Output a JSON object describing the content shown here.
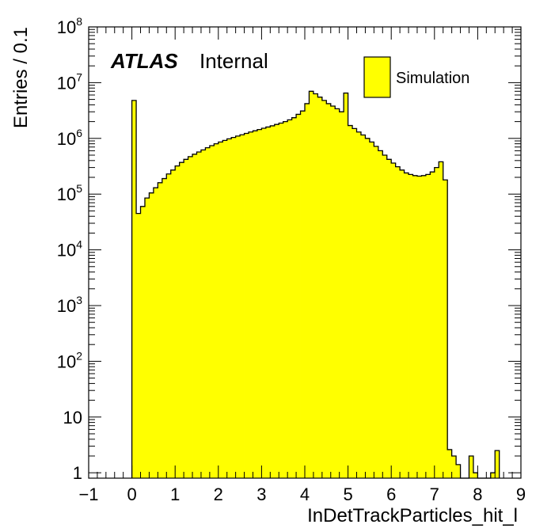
{
  "chart_data": {
    "type": "bar",
    "style": "histogram-step-filled",
    "xlabel": "InDetTrackParticles_hit_l",
    "ylabel": "Entries / 0.1",
    "xlim": [
      -1,
      9
    ],
    "ylim": [
      0.8,
      100000000
    ],
    "yscale": "log",
    "bin_width": 0.1,
    "fill_color": "#ffff00",
    "line_color": "#000000",
    "experiment_label": "ATLAS",
    "experiment_sublabel": "Internal",
    "legend": {
      "position": "top-right",
      "entries": [
        "Simulation"
      ]
    },
    "x_ticks": [
      "−1",
      "0",
      "1",
      "2",
      "3",
      "4",
      "5",
      "6",
      "7",
      "8",
      "9"
    ],
    "y_ticks": [
      {
        "base": "1",
        "exp": ""
      },
      {
        "base": "10",
        "exp": ""
      },
      {
        "base": "10",
        "exp": "2"
      },
      {
        "base": "10",
        "exp": "3"
      },
      {
        "base": "10",
        "exp": "4"
      },
      {
        "base": "10",
        "exp": "5"
      },
      {
        "base": "10",
        "exp": "6"
      },
      {
        "base": "10",
        "exp": "7"
      },
      {
        "base": "10",
        "exp": "8"
      }
    ],
    "bin_start": 0.0,
    "values": [
      4800000,
      45000,
      60000,
      85000,
      105000,
      130000,
      160000,
      190000,
      230000,
      270000,
      320000,
      370000,
      420000,
      470000,
      520000,
      570000,
      620000,
      680000,
      740000,
      800000,
      860000,
      920000,
      980000,
      1040000,
      1100000,
      1160000,
      1230000,
      1300000,
      1370000,
      1440000,
      1520000,
      1600000,
      1680000,
      1780000,
      1880000,
      2000000,
      2150000,
      2350000,
      2700000,
      3100000,
      4200000,
      7000000,
      6300000,
      5500000,
      4800000,
      4200000,
      3800000,
      3400000,
      3000000,
      6500000,
      1700000,
      1500000,
      1300000,
      1150000,
      1000000,
      860000,
      720000,
      600000,
      500000,
      420000,
      360000,
      310000,
      270000,
      240000,
      225000,
      215000,
      210000,
      215000,
      225000,
      250000,
      300000,
      380000,
      180000,
      2.6,
      2,
      1.4,
      0,
      0,
      2,
      1,
      0,
      0,
      0,
      1,
      2.5
    ]
  }
}
